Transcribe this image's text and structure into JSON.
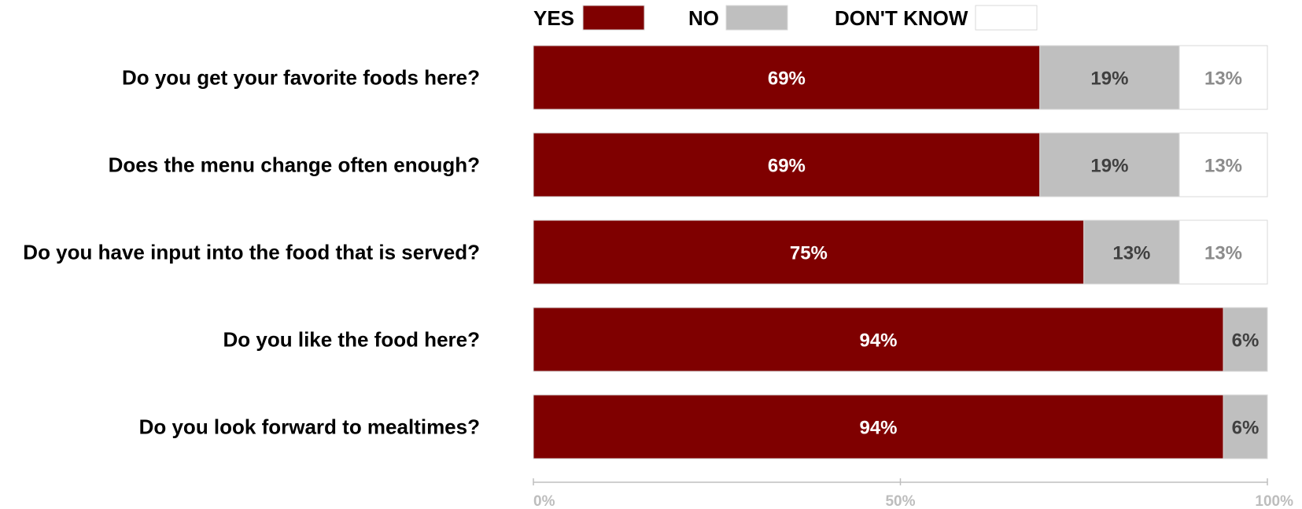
{
  "chart_data": {
    "type": "bar",
    "orientation": "horizontal",
    "stacked": true,
    "categories": [
      "Do you get your favorite foods here?",
      "Does the menu change often enough?",
      "Do you have input into the food that is served?",
      "Do you like the food here?",
      "Do you look forward to mealtimes?"
    ],
    "series": [
      {
        "name": "YES",
        "color": "#7f0000",
        "label_color": "#ffffff",
        "values": [
          69,
          69,
          75,
          94,
          94
        ],
        "labels": [
          "69%",
          "69%",
          "75%",
          "94%",
          "94%"
        ]
      },
      {
        "name": "NO",
        "color": "#bfbfbf",
        "label_color": "#404040",
        "values": [
          19,
          19,
          13,
          6,
          6
        ],
        "labels": [
          "19%",
          "19%",
          "13%",
          "6%",
          "6%"
        ]
      },
      {
        "name": "DON'T KNOW",
        "color": "#ffffff",
        "label_color": "#8c8c8c",
        "values": [
          13,
          13,
          13,
          0,
          0
        ],
        "labels": [
          "13%",
          "13%",
          "13%",
          "",
          ""
        ]
      }
    ],
    "xlim": [
      0,
      100
    ],
    "x_ticks": [
      0,
      50,
      100
    ],
    "x_tick_labels": [
      "0%",
      "50%",
      "100%"
    ],
    "legend_position": "top",
    "grid": false,
    "title": "",
    "xlabel": "",
    "ylabel": ""
  }
}
